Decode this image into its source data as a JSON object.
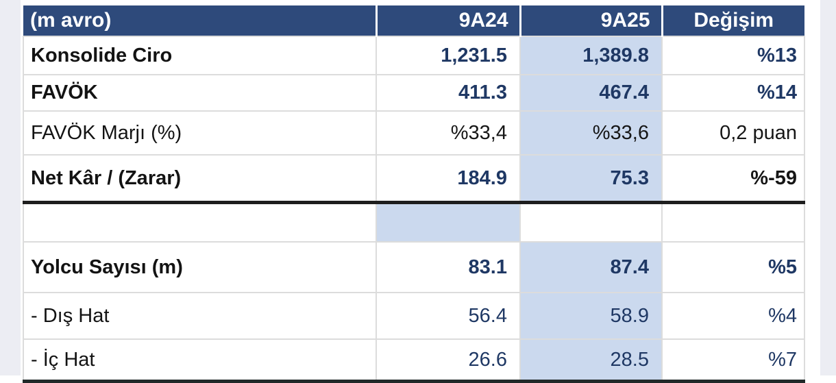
{
  "page": {
    "side_strip_color": "#ECEDF3",
    "background_color": "#ffffff"
  },
  "table": {
    "header": {
      "label": "(m avro)",
      "col_9a24": "9A24",
      "col_9a25": "9A25",
      "col_change": "Değişim"
    },
    "rows": [
      {
        "label": "Konsolide Ciro",
        "v_9a24": "1,231.5",
        "v_9a25": "1,389.8",
        "change": "%13"
      },
      {
        "label": "FAVÖK",
        "v_9a24": "411.3",
        "v_9a25": "467.4",
        "change": "%14"
      },
      {
        "label": "FAVÖK Marjı (%)",
        "v_9a24": "%33,4",
        "v_9a25": "%33,6",
        "change": "0,2 puan"
      },
      {
        "label": "Net Kâr / (Zarar)",
        "v_9a24": "184.9",
        "v_9a25": "75.3",
        "change": "%-59"
      },
      {
        "label": "",
        "v_9a24": "",
        "v_9a25": "",
        "change": ""
      },
      {
        "label": "Yolcu Sayısı (m)",
        "v_9a24": "83.1",
        "v_9a25": "87.4",
        "change": "%5"
      },
      {
        "label": "- Dış Hat",
        "v_9a24": "56.4",
        "v_9a25": "58.9",
        "change": "%4"
      },
      {
        "label": "- İç Hat",
        "v_9a24": "26.6",
        "v_9a25": "28.5",
        "change": "%7"
      }
    ],
    "colors": {
      "header_bg": "#2E4A7B",
      "header_text": "#FFFFFF",
      "highlight_column_bg": "#CBD9EE",
      "value_navy": "#1F3864",
      "value_black": "#161616",
      "gridline": "#DCDCDC",
      "thick_rule": "#1E1E1E"
    }
  },
  "chart_data": {
    "type": "table",
    "title": "(m avro)",
    "columns": [
      "(m avro)",
      "9A24",
      "9A25",
      "Değişim"
    ],
    "rows": [
      [
        "Konsolide Ciro",
        "1,231.5",
        "1,389.8",
        "%13"
      ],
      [
        "FAVÖK",
        "411.3",
        "467.4",
        "%14"
      ],
      [
        "FAVÖK Marjı (%)",
        "%33,4",
        "%33,6",
        "0,2 puan"
      ],
      [
        "Net Kâr / (Zarar)",
        "184.9",
        "75.3",
        "%-59"
      ],
      [
        "Yolcu Sayısı (m)",
        "83.1",
        "87.4",
        "%5"
      ],
      [
        "- Dış Hat",
        "56.4",
        "58.9",
        "%4"
      ],
      [
        "- İç Hat",
        "26.6",
        "28.5",
        "%7"
      ]
    ],
    "layout_hints": {
      "highlighted_column": "9A25",
      "bold_rows": [
        "Konsolide Ciro",
        "FAVÖK",
        "Net Kâr / (Zarar)",
        "Yolcu Sayısı (m)"
      ],
      "thick_rule_after_rows": [
        "Net Kâr / (Zarar)",
        "- İç Hat"
      ],
      "spacer_row_after": "Net Kâr / (Zarar)"
    }
  }
}
